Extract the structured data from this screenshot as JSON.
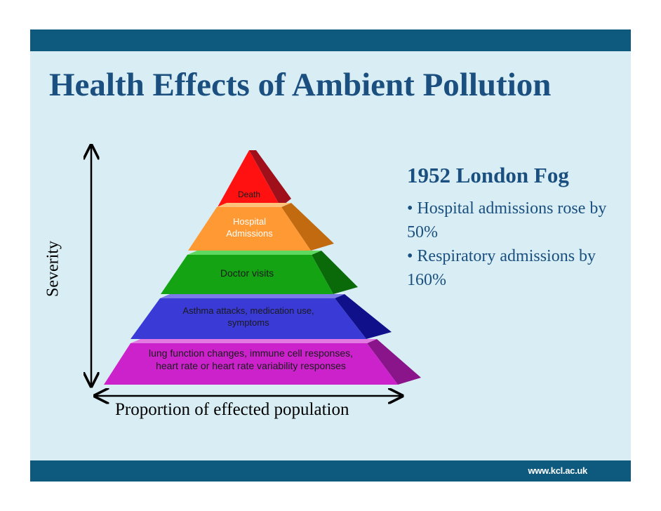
{
  "slide": {
    "title": "Health Effects of Ambient Pollution",
    "footer_url": "www.kcl.ac.uk",
    "colors": {
      "banner": "#0e5a7e",
      "background": "#d8eef4",
      "title": "#1a4f7f"
    }
  },
  "pyramid": {
    "y_axis_label": "Severity",
    "x_axis_label": "Proportion of effected population",
    "tiers": [
      {
        "lines": [
          "Death"
        ],
        "front": "#ff1111",
        "side": "#a0101a",
        "top": "#ff7777",
        "light": false
      },
      {
        "lines": [
          "Hospital",
          "Admissions"
        ],
        "front": "#ff9933",
        "side": "#c26a10",
        "top": "#ffc27a",
        "light": true
      },
      {
        "lines": [
          "Doctor visits"
        ],
        "front": "#13a313",
        "side": "#0a6a0a",
        "top": "#5fd85f",
        "light": false
      },
      {
        "lines": [
          "Asthma attacks, medication use,",
          "symptoms"
        ],
        "front": "#3a3ad6",
        "side": "#10108a",
        "top": "#7a7ae8",
        "light": false
      },
      {
        "lines": [
          "lung function changes, immune cell responses,",
          "heart rate or heart rate variability responses"
        ],
        "front": "#cc22cc",
        "side": "#8a148a",
        "top": "#e27ae2",
        "light": false
      }
    ]
  },
  "london_fog": {
    "heading": "1952 London Fog",
    "items": [
      "• Hospital admissions rose by 50%",
      "• Respiratory admissions by 160%"
    ]
  }
}
